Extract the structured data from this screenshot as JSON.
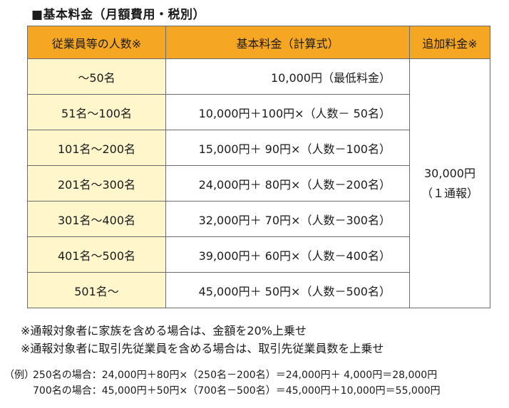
{
  "title": "■基本料金（月額費用・税別）",
  "table": {
    "headers": {
      "employees": "従業員等の人数※",
      "base_fee": "基本料金（計算式）",
      "additional": "追加料金※"
    },
    "rows": [
      {
        "employees": "～50名",
        "formula": "10,000円（最低料金）"
      },
      {
        "employees": "51名～100名",
        "formula": "10,000円＋100円×（人数－ 50名）"
      },
      {
        "employees": "101名～200名",
        "formula": "15,000円＋ 90円×（人数－100名）"
      },
      {
        "employees": "201名～300名",
        "formula": "24,000円＋ 80円×（人数－200名）"
      },
      {
        "employees": "301名～400名",
        "formula": "32,000円＋ 70円×（人数－300名）"
      },
      {
        "employees": "401名～500名",
        "formula": "39,000円＋ 60円×（人数－400名）"
      },
      {
        "employees": "501名～",
        "formula": "45,000円＋ 50円×（人数－500名）"
      }
    ],
    "additional_fee": {
      "amount": "30,000円",
      "unit": "（１通報）"
    }
  },
  "notes": [
    "※通報対象者に家族を含める場合は、金額を20%上乗せ",
    "※通報対象者に取引先従業員を含める場合は、取引先従業員数を上乗せ"
  ],
  "examples": {
    "prefix": "（例）",
    "lines": [
      "250名の場合：24,000円＋80円×（250名－200名）＝24,000円＋ 4,000円＝28,000円",
      "700名の場合：45,000円＋50円×（700名－500名）＝45,000円＋10,000円＝55,000円"
    ]
  },
  "colors": {
    "header_bg": "#f5a623",
    "employee_cell_bg": "#fff6cc",
    "border": "#6b6b6b"
  }
}
